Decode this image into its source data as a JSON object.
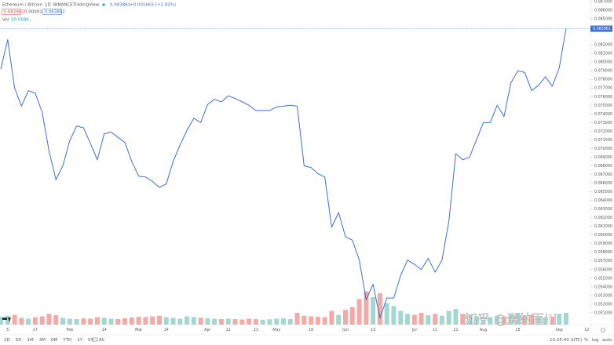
{
  "chart_data": {
    "type": "line",
    "title": "Ethereum / Bitcoin",
    "interval": "1D",
    "exchange": "BINANCE",
    "source": "TradingView",
    "quote": "0.083861",
    "change": "+0.001663 (+2.03%)",
    "bid_ask": [
      "0.083861",
      "0.00001",
      "0.083862"
    ],
    "color": "#3d6fd6",
    "categories": [
      null,
      "5",
      null,
      null,
      null,
      "17",
      null,
      null,
      null,
      null,
      "Feb",
      null,
      null,
      null,
      null,
      "14",
      null,
      null,
      null,
      null,
      "Mar",
      null,
      null,
      null,
      "14",
      null,
      null,
      null,
      null,
      null,
      "Apr",
      null,
      null,
      "11",
      null,
      null,
      null,
      "21",
      null,
      null,
      "May",
      null,
      null,
      null,
      null,
      "16",
      null,
      null,
      null,
      null,
      "Jun",
      null,
      null,
      null,
      "13",
      null,
      null,
      null,
      null,
      null,
      "Jul",
      null,
      null,
      "11",
      null,
      null,
      "21",
      null,
      null,
      null,
      "Aug",
      null,
      null,
      null,
      null,
      "15",
      null,
      null,
      null,
      null,
      null,
      "Sep",
      null,
      null,
      null,
      "12"
    ],
    "values": [
      0.0792,
      0.0826,
      0.077,
      0.0749,
      0.0767,
      0.0764,
      0.0742,
      0.0697,
      0.0664,
      0.068,
      0.0709,
      0.0726,
      0.0724,
      0.0706,
      0.0687,
      0.0717,
      0.0719,
      0.0713,
      0.0707,
      0.0685,
      0.0668,
      0.0667,
      0.0662,
      0.0655,
      0.0659,
      0.0685,
      0.0704,
      0.0721,
      0.0735,
      0.073,
      0.0751,
      0.0757,
      0.0754,
      0.0761,
      0.0758,
      0.0754,
      0.075,
      0.0744,
      0.0744,
      0.0744,
      0.0748,
      0.0749,
      0.075,
      0.0749,
      0.068,
      0.0678,
      0.0671,
      0.0667,
      0.0609,
      0.0626,
      0.0598,
      0.0594,
      0.0571,
      0.0525,
      0.0543,
      0.0504,
      0.0527,
      0.0527,
      0.0553,
      0.0571,
      0.0566,
      0.056,
      0.0573,
      0.0557,
      0.0571,
      0.0616,
      0.0694,
      0.0687,
      0.069,
      0.071,
      0.073,
      0.073,
      0.075,
      0.0737,
      0.0776,
      0.079,
      0.0788,
      0.0767,
      0.0773,
      0.0783,
      0.0772,
      0.0793,
      0.0839,
      null,
      null,
      null
    ],
    "current_price": {
      "value": 0.083861,
      "label": "0.083861"
    },
    "ylim": [
      0.04963,
      0.08718
    ],
    "yticks": [
      {
        "value": 0.087,
        "label": "0.087000"
      },
      {
        "value": 0.086,
        "label": "0.086000"
      },
      {
        "value": 0.085,
        "label": "0.085000"
      },
      {
        "value": 0.084,
        "label": "0.084000"
      },
      {
        "value": 0.082,
        "label": "0.082000"
      },
      {
        "value": 0.081,
        "label": "0.081000"
      },
      {
        "value": 0.08,
        "label": "0.080000"
      },
      {
        "value": 0.079,
        "label": "0.079000"
      },
      {
        "value": 0.078,
        "label": "0.078000"
      },
      {
        "value": 0.077,
        "label": "0.077000"
      },
      {
        "value": 0.076,
        "label": "0.076000"
      },
      {
        "value": 0.075,
        "label": "0.075000"
      },
      {
        "value": 0.074,
        "label": "0.074000"
      },
      {
        "value": 0.073,
        "label": "0.073000"
      },
      {
        "value": 0.072,
        "label": "0.072000"
      },
      {
        "value": 0.071,
        "label": "0.071000"
      },
      {
        "value": 0.07,
        "label": "0.070000"
      },
      {
        "value": 0.069,
        "label": "0.069000"
      },
      {
        "value": 0.068,
        "label": "0.068000"
      },
      {
        "value": 0.067,
        "label": "0.067000"
      },
      {
        "value": 0.066,
        "label": "0.066000"
      },
      {
        "value": 0.065,
        "label": "0.065000"
      },
      {
        "value": 0.064,
        "label": "0.064000"
      },
      {
        "value": 0.063,
        "label": "0.063000"
      },
      {
        "value": 0.062,
        "label": "0.062000"
      },
      {
        "value": 0.061,
        "label": "0.061000"
      },
      {
        "value": 0.06,
        "label": "0.060000"
      },
      {
        "value": 0.059,
        "label": "0.059000"
      },
      {
        "value": 0.058,
        "label": "0.058000"
      },
      {
        "value": 0.057,
        "label": "0.057000"
      },
      {
        "value": 0.056,
        "label": "0.056000"
      },
      {
        "value": 0.055,
        "label": "0.055000"
      },
      {
        "value": 0.054,
        "label": "0.054000"
      },
      {
        "value": 0.053,
        "label": "0.053000"
      },
      {
        "value": 0.052,
        "label": "0.052000"
      },
      {
        "value": 0.051,
        "label": "0.051000"
      }
    ],
    "volume": {
      "name": "Vol",
      "last": "50.058K",
      "up_color": "#a3d8d1",
      "down_color": "#f3aaa6",
      "vlim": [
        0,
        200
      ],
      "values": [
        40,
        45,
        50,
        35,
        30,
        38,
        42,
        55,
        48,
        35,
        30,
        28,
        32,
        30,
        38,
        35,
        30,
        28,
        33,
        36,
        40,
        38,
        42,
        45,
        38,
        35,
        30,
        42,
        38,
        35,
        32,
        30,
        28,
        30,
        28,
        26,
        30,
        28,
        25,
        27,
        30,
        32,
        28,
        60,
        45,
        42,
        40,
        38,
        70,
        50,
        75,
        90,
        130,
        170,
        140,
        160,
        110,
        95,
        70,
        55,
        50,
        60,
        48,
        55,
        45,
        70,
        80,
        55,
        45,
        42,
        40,
        38,
        45,
        40,
        55,
        60,
        45,
        50,
        42,
        38,
        40,
        55,
        60,
        null,
        null,
        null
      ]
    }
  },
  "toolbar": {
    "ranges": [
      "1D",
      "5D",
      "1M",
      "3M",
      "6M",
      "YTD",
      "1Y",
      "5Y",
      "All"
    ],
    "clock": "10:25:40 (UTC)",
    "options": [
      "%",
      "log",
      "auto"
    ]
  },
  "watermark": "知乎 @海纳百川"
}
